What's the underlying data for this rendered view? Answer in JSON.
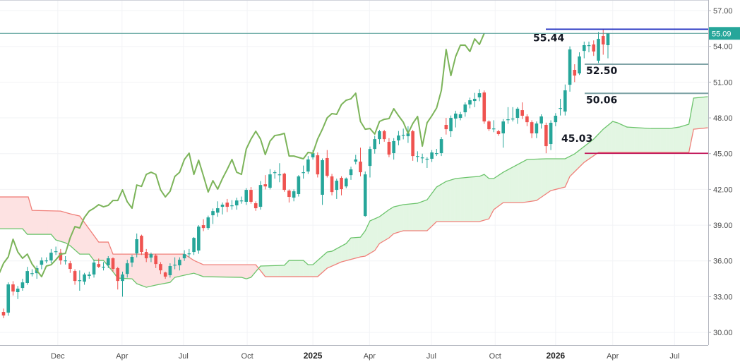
{
  "chart_data": {
    "type": "candlestick",
    "indicator": "ichimoku-cloud",
    "colors": {
      "up": "#26a69a",
      "down": "#ef5350",
      "lagging_span": "#7cb45a",
      "span_a": "#6cc46c",
      "span_b": "#f0807a",
      "cloud_bull": "#e3f6e3",
      "cloud_bear": "#fde2e2",
      "resistance": "#1c2bbf",
      "support_mid": "#7fa3a6",
      "support_low": "#c2185b",
      "price_line": "#4f9a94",
      "grid": "#f2f3f6"
    },
    "ylim": [
      28.94,
      57.89
    ],
    "xlim": [
      0.26,
      149.07
    ],
    "grid": true,
    "y_ticks": [
      "57.00",
      "54.00",
      "51.00",
      "48.00",
      "45.00",
      "42.00",
      "39.00",
      "36.00",
      "33.00",
      "30.00"
    ],
    "x_ticks": [
      {
        "label": "Dec",
        "index": 12.4,
        "year": false
      },
      {
        "label": "Apr",
        "index": 25.9,
        "year": false
      },
      {
        "label": "Jul",
        "index": 38.8,
        "year": false
      },
      {
        "label": "Oct",
        "index": 52.2,
        "year": false
      },
      {
        "label": "2025",
        "index": 66,
        "year": true
      },
      {
        "label": "Apr",
        "index": 77.9,
        "year": false
      },
      {
        "label": "Jul",
        "index": 90.9,
        "year": false
      },
      {
        "label": "Oct",
        "index": 104.3,
        "year": false
      },
      {
        "label": "2026",
        "index": 117,
        "year": true
      },
      {
        "label": "Apr",
        "index": 129,
        "year": false
      },
      {
        "label": "Jul",
        "index": 142,
        "year": false
      }
    ],
    "last_price": "55.09",
    "lagging_span_offset": 26,
    "candles_ohlc": [
      [
        31.72,
        32.0,
        31.2,
        31.42
      ],
      [
        31.66,
        34.2,
        31.4,
        34.03
      ],
      [
        34.03,
        34.3,
        33.1,
        33.43
      ],
      [
        33.38,
        33.9,
        32.8,
        33.67
      ],
      [
        33.73,
        34.5,
        33.5,
        34.2
      ],
      [
        34.15,
        35.5,
        34.0,
        35.15
      ],
      [
        34.97,
        35.3,
        34.7,
        34.97
      ],
      [
        34.97,
        35.6,
        34.5,
        35.39
      ],
      [
        35.68,
        36.3,
        35.3,
        36.04
      ],
      [
        36.04,
        36.3,
        35.8,
        36.04
      ],
      [
        36.04,
        37.0,
        35.8,
        36.69
      ],
      [
        36.75,
        37.2,
        36.5,
        36.81
      ],
      [
        36.69,
        37.0,
        35.7,
        36.04
      ],
      [
        36.04,
        36.4,
        35.7,
        36.04
      ],
      [
        35.8,
        36.0,
        35.0,
        35.33
      ],
      [
        35.15,
        35.3,
        34.0,
        34.32
      ],
      [
        34.38,
        35.2,
        33.5,
        34.38
      ],
      [
        34.26,
        35.0,
        34.0,
        34.86
      ],
      [
        34.74,
        35.1,
        34.5,
        34.86
      ],
      [
        34.86,
        36.1,
        34.6,
        35.86
      ],
      [
        35.74,
        36.2,
        35.4,
        35.51
      ],
      [
        35.51,
        35.9,
        35.2,
        35.51
      ],
      [
        35.63,
        36.4,
        35.4,
        36.22
      ],
      [
        36.22,
        36.3,
        35.1,
        35.33
      ],
      [
        35.39,
        35.5,
        33.6,
        34.32
      ],
      [
        34.32,
        35.1,
        33.0,
        34.86
      ],
      [
        34.91,
        36.1,
        34.6,
        35.8
      ],
      [
        35.86,
        36.5,
        35.5,
        36.34
      ],
      [
        36.63,
        38.3,
        36.3,
        37.82
      ],
      [
        38.11,
        38.2,
        36.5,
        36.75
      ],
      [
        36.75,
        37.0,
        35.9,
        36.22
      ],
      [
        36.28,
        36.7,
        35.9,
        36.57
      ],
      [
        36.45,
        36.6,
        35.4,
        35.74
      ],
      [
        35.74,
        35.9,
        34.9,
        35.21
      ],
      [
        35.03,
        35.1,
        34.5,
        34.68
      ],
      [
        34.8,
        35.8,
        34.6,
        35.57
      ],
      [
        35.68,
        36.3,
        35.3,
        35.68
      ],
      [
        35.63,
        36.3,
        35.2,
        36.1
      ],
      [
        36.22,
        36.9,
        36.0,
        36.57
      ],
      [
        36.63,
        37.0,
        36.3,
        36.63
      ],
      [
        36.75,
        38.0,
        36.5,
        37.93
      ],
      [
        36.87,
        39.0,
        36.6,
        38.88
      ],
      [
        39.0,
        39.5,
        38.5,
        38.76
      ],
      [
        38.76,
        39.8,
        38.6,
        39.65
      ],
      [
        39.83,
        40.4,
        39.1,
        40.18
      ],
      [
        40.05,
        41.0,
        39.7,
        40.42
      ],
      [
        40.54,
        40.9,
        39.9,
        40.72
      ],
      [
        40.89,
        41.2,
        40.1,
        40.54
      ],
      [
        40.66,
        41.1,
        40.3,
        40.66
      ],
      [
        40.66,
        41.3,
        40.3,
        41.07
      ],
      [
        41.07,
        41.4,
        40.8,
        41.07
      ],
      [
        40.96,
        42.1,
        40.7,
        41.96
      ],
      [
        41.96,
        42.2,
        40.8,
        40.96
      ],
      [
        40.84,
        41.0,
        40.2,
        40.42
      ],
      [
        40.54,
        42.7,
        40.3,
        42.37
      ],
      [
        42.43,
        43.2,
        42.0,
        42.25
      ],
      [
        42.14,
        43.7,
        42.0,
        43.26
      ],
      [
        43.44,
        43.6,
        42.9,
        43.44
      ],
      [
        43.26,
        44.2,
        42.6,
        43.26
      ],
      [
        43.32,
        43.4,
        41.8,
        41.96
      ],
      [
        41.9,
        42.0,
        40.9,
        41.37
      ],
      [
        41.31,
        42.0,
        41.0,
        41.84
      ],
      [
        41.61,
        43.2,
        41.4,
        43.09
      ],
      [
        43.44,
        44.0,
        42.9,
        43.44
      ],
      [
        43.5,
        44.8,
        43.3,
        44.51
      ],
      [
        44.69,
        45.3,
        44.5,
        45.04
      ],
      [
        44.86,
        45.1,
        43.0,
        43.26
      ],
      [
        41.55,
        44.6,
        40.7,
        44.45
      ],
      [
        44.63,
        45.3,
        43.0,
        43.14
      ],
      [
        43.09,
        43.3,
        41.5,
        41.78
      ],
      [
        41.96,
        42.9,
        41.2,
        42.73
      ],
      [
        42.97,
        43.1,
        41.5,
        42.02
      ],
      [
        42.25,
        43.0,
        42.1,
        42.91
      ],
      [
        43.2,
        43.9,
        42.8,
        43.68
      ],
      [
        44.33,
        44.9,
        44.1,
        44.51
      ],
      [
        44.33,
        45.5,
        43.1,
        43.44
      ],
      [
        39.77,
        43.5,
        39.7,
        43.26
      ],
      [
        43.97,
        45.6,
        43.0,
        45.39
      ],
      [
        45.39,
        46.5,
        45.0,
        46.22
      ],
      [
        46.22,
        47.0,
        45.8,
        46.88
      ],
      [
        46.88,
        47.0,
        46.0,
        46.22
      ],
      [
        45.99,
        46.3,
        44.7,
        44.92
      ],
      [
        45.04,
        46.3,
        44.5,
        46.05
      ],
      [
        46.11,
        46.9,
        45.7,
        46.52
      ],
      [
        46.58,
        47.1,
        46.2,
        46.58
      ],
      [
        46.46,
        47.3,
        45.9,
        46.7
      ],
      [
        46.88,
        47.0,
        44.4,
        44.8
      ],
      [
        44.8,
        45.2,
        44.3,
        44.8
      ],
      [
        44.68,
        45.0,
        44.2,
        44.68
      ],
      [
        44.57,
        44.7,
        43.8,
        44.57
      ],
      [
        44.57,
        45.3,
        44.3,
        45.1
      ],
      [
        45.04,
        45.4,
        44.8,
        45.04
      ],
      [
        45.04,
        46.4,
        44.8,
        46.22
      ],
      [
        47.41,
        48.0,
        46.6,
        47.05
      ],
      [
        46.88,
        48.2,
        46.4,
        48.0
      ],
      [
        47.94,
        48.6,
        47.2,
        48.36
      ],
      [
        48.0,
        48.5,
        47.8,
        48.3
      ],
      [
        48.47,
        49.3,
        48.1,
        49.12
      ],
      [
        49.12,
        49.7,
        48.8,
        49.48
      ],
      [
        49.42,
        50.1,
        48.9,
        49.6
      ],
      [
        49.72,
        50.4,
        49.4,
        50.07
      ],
      [
        50.13,
        50.3,
        47.5,
        47.7
      ],
      [
        47.7,
        47.8,
        46.9,
        47.05
      ],
      [
        47.11,
        47.8,
        46.8,
        47.11
      ],
      [
        46.88,
        47.0,
        46.5,
        46.64
      ],
      [
        46.7,
        47.9,
        45.5,
        47.7
      ],
      [
        47.88,
        48.9,
        47.5,
        47.88
      ],
      [
        47.94,
        48.9,
        47.7,
        47.94
      ],
      [
        48.0,
        48.9,
        47.5,
        48.77
      ],
      [
        48.65,
        49.3,
        47.9,
        48.18
      ],
      [
        48.12,
        48.3,
        47.3,
        47.64
      ],
      [
        47.64,
        47.8,
        46.3,
        46.7
      ],
      [
        46.7,
        47.7,
        46.3,
        47.53
      ],
      [
        47.53,
        48.3,
        47.1,
        48.12
      ],
      [
        47.41,
        47.6,
        45.03,
        45.63
      ],
      [
        45.81,
        47.8,
        45.3,
        47.59
      ],
      [
        47.64,
        48.4,
        47.3,
        48.18
      ],
      [
        48.83,
        49.6,
        48.2,
        48.83
      ],
      [
        48.53,
        50.8,
        48.2,
        50.31
      ],
      [
        50.78,
        54.0,
        50.2,
        53.74
      ],
      [
        52.03,
        52.5,
        51.0,
        51.55
      ],
      [
        51.73,
        53.5,
        51.6,
        53.15
      ],
      [
        53.62,
        54.4,
        53.0,
        54.1
      ],
      [
        54.1,
        54.4,
        53.5,
        54.1
      ],
      [
        54.16,
        54.5,
        53.2,
        53.57
      ],
      [
        52.8,
        55.2,
        52.6,
        54.63
      ],
      [
        54.87,
        55.44,
        53.3,
        54.16
      ],
      [
        54.1,
        55.1,
        53.0,
        55.09
      ]
    ],
    "span_a": [
      [
        1,
        38.7
      ],
      [
        5,
        38.7
      ],
      [
        6,
        38.23
      ],
      [
        11,
        38.23
      ],
      [
        12,
        37.76
      ],
      [
        14,
        37.52
      ],
      [
        15,
        37.28
      ],
      [
        17,
        36.57
      ],
      [
        19,
        36.57
      ],
      [
        20,
        36.04
      ],
      [
        22,
        36.04
      ],
      [
        24,
        35.09
      ],
      [
        25,
        34.56
      ],
      [
        28,
        34.5
      ],
      [
        29,
        34.09
      ],
      [
        31,
        33.79
      ],
      [
        33,
        33.97
      ],
      [
        36,
        34.2
      ],
      [
        37,
        34.62
      ],
      [
        39,
        34.8
      ],
      [
        41,
        34.97
      ],
      [
        43,
        34.68
      ],
      [
        51,
        34.62
      ],
      [
        52,
        34.5
      ],
      [
        53,
        34.62
      ],
      [
        55,
        35.57
      ],
      [
        60,
        35.63
      ],
      [
        61,
        36.04
      ],
      [
        64,
        36.04
      ],
      [
        65,
        35.68
      ],
      [
        66,
        35.68
      ],
      [
        69,
        36.75
      ],
      [
        70,
        36.81
      ],
      [
        73,
        37.46
      ],
      [
        74,
        37.93
      ],
      [
        76,
        37.99
      ],
      [
        77,
        38.53
      ],
      [
        78,
        39.36
      ],
      [
        80,
        39.71
      ],
      [
        82,
        40.3
      ],
      [
        83,
        40.54
      ],
      [
        85,
        40.72
      ],
      [
        88,
        40.84
      ],
      [
        90,
        41.13
      ],
      [
        92,
        42.2
      ],
      [
        94,
        42.67
      ],
      [
        96,
        42.91
      ],
      [
        99,
        43.03
      ],
      [
        101,
        43.09
      ],
      [
        102,
        43.26
      ],
      [
        103,
        42.91
      ],
      [
        104,
        42.91
      ],
      [
        106,
        43.44
      ],
      [
        111,
        44.51
      ],
      [
        115,
        44.57
      ],
      [
        119,
        44.57
      ],
      [
        121,
        44.98
      ],
      [
        125,
        46.22
      ],
      [
        127,
        47.05
      ],
      [
        129,
        47.7
      ],
      [
        130,
        47.59
      ],
      [
        132,
        47.23
      ],
      [
        137,
        47.11
      ],
      [
        141,
        47.11
      ],
      [
        143,
        47.23
      ],
      [
        145,
        47.47
      ],
      [
        146,
        49.66
      ],
      [
        149,
        49.78
      ]
    ],
    "span_b": [
      [
        1,
        41.37
      ],
      [
        6.2,
        41.37
      ],
      [
        7,
        40.24
      ],
      [
        13,
        40.18
      ],
      [
        15,
        39.95
      ],
      [
        17,
        39.77
      ],
      [
        21,
        37.58
      ],
      [
        23,
        37.58
      ],
      [
        24,
        36.57
      ],
      [
        39,
        36.57
      ],
      [
        41,
        36.04
      ],
      [
        43,
        35.68
      ],
      [
        54,
        35.68
      ],
      [
        56,
        34.68
      ],
      [
        67,
        34.68
      ],
      [
        69,
        35.39
      ],
      [
        72,
        35.92
      ],
      [
        76,
        36.34
      ],
      [
        77,
        36.4
      ],
      [
        79,
        36.87
      ],
      [
        80,
        37.46
      ],
      [
        82,
        37.93
      ],
      [
        83,
        38.29
      ],
      [
        85,
        38.53
      ],
      [
        90,
        38.53
      ],
      [
        92,
        39.3
      ],
      [
        101,
        39.3
      ],
      [
        103,
        39.53
      ],
      [
        104,
        40.3
      ],
      [
        106,
        40.89
      ],
      [
        110,
        40.89
      ],
      [
        113,
        41.07
      ],
      [
        116,
        41.9
      ],
      [
        119,
        42.2
      ],
      [
        120,
        43.09
      ],
      [
        123,
        44.27
      ],
      [
        126,
        45.1
      ],
      [
        145,
        45.1
      ],
      [
        146,
        47.05
      ],
      [
        149,
        47.17
      ]
    ],
    "levels": [
      {
        "price": 55.44,
        "label": "55.44",
        "kind": "resistance"
      },
      {
        "price": 52.5,
        "label": "52.50",
        "kind": "support_mid"
      },
      {
        "price": 50.06,
        "label": "50.06",
        "kind": "support_mid"
      },
      {
        "price": 45.03,
        "label": "45.03",
        "kind": "support_low"
      }
    ]
  }
}
